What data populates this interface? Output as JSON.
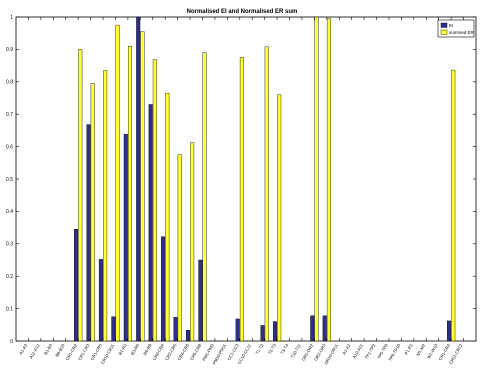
{
  "chart_data": {
    "type": "bar",
    "title": "Normalised EI and Normalised ER sum",
    "xlabel": "",
    "ylabel": "",
    "ylim": [
      0,
      1
    ],
    "yticks": [
      0,
      0.1,
      0.2,
      0.3,
      0.4,
      0.5,
      0.6,
      0.7,
      0.8,
      0.9,
      1
    ],
    "grid": false,
    "legend_position": "top-right",
    "categories": [
      "A1-A3",
      "A11-A12",
      "B1-B3",
      "B8-B10",
      "CR1-CR2",
      "CR1-CR3",
      "CR1-CR5",
      "CR10-CR11",
      "R1-R2",
      "R3-R5",
      "R6-R8",
      "CR2-CR4",
      "CR2-CR5",
      "CR4-CR6",
      "CR5-CR8",
      "PM1-PM3",
      "PM10-PM11",
      "CC1-CC3",
      "CC10-CC11",
      "T1-T2",
      "T2-T3",
      "T3-T4",
      "T10-T11",
      "OR1-OR2",
      "OR2-OR3",
      "OR10-OR11",
      "A1-A2",
      "A10-A11",
      "TP1-TP2",
      "TP5-TP6",
      "TP8-TP10",
      "P1-P2",
      "M1-M2",
      "W1-W10",
      "CR1-CR4",
      "CR11-CR12"
    ],
    "series": [
      {
        "name": "EI",
        "color": "#2e2e8c",
        "values": [
          0,
          0,
          0,
          0,
          0.345,
          0.668,
          0.252,
          0.075,
          0.638,
          1.0,
          0.73,
          0.322,
          0.073,
          0.033,
          0.25,
          0,
          0,
          0.068,
          0,
          0.048,
          0.06,
          0,
          0,
          0.078,
          0.078,
          0,
          0,
          0,
          0,
          0,
          0,
          0,
          0,
          0,
          0.062,
          0
        ]
      },
      {
        "name": "summed ER",
        "color": "#ffff33",
        "values": [
          0,
          0,
          0,
          0,
          0.9,
          0.795,
          0.835,
          0.975,
          0.91,
          0.955,
          0.868,
          0.765,
          0.575,
          0.612,
          0.89,
          0,
          0,
          0.875,
          0,
          0.908,
          0.76,
          0,
          0,
          1.0,
          0.995,
          0,
          0,
          0,
          0,
          0,
          0,
          0,
          0,
          0,
          0.836,
          0
        ]
      }
    ]
  },
  "colors": {
    "axis": "#000000",
    "background": "#ffffff",
    "bar_stroke": "#000000"
  }
}
